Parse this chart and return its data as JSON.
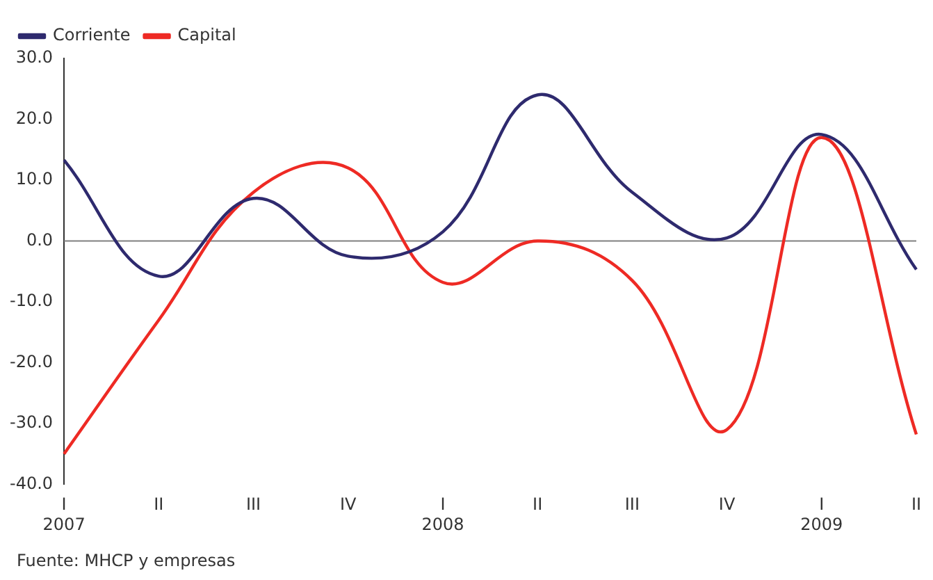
{
  "chart_data": {
    "type": "line",
    "categories": [
      "I\n2007",
      "II",
      "III",
      "IV",
      "I\n2008",
      "II",
      "III",
      "IV",
      "I\n2009",
      "II"
    ],
    "series": [
      {
        "name": "Corriente",
        "color": "#2e2a6e",
        "values": [
          13.3,
          -5.8,
          7.0,
          -2.5,
          1.5,
          24.0,
          8.0,
          0.5,
          17.5,
          -4.7
        ]
      },
      {
        "name": "Capital",
        "color": "#ee2a24",
        "values": [
          -35.0,
          -13.0,
          8.0,
          12.0,
          -6.8,
          0.0,
          -6.5,
          -31.0,
          17.0,
          -31.8
        ]
      }
    ],
    "ylim": [
      -40,
      30
    ],
    "yticks": [
      {
        "value": -40,
        "label": "-40.0"
      },
      {
        "value": -30,
        "label": "-30.0"
      },
      {
        "value": -20,
        "label": "-20.0"
      },
      {
        "value": -10,
        "label": "-10.0"
      },
      {
        "value": 0,
        "label": "0.0"
      },
      {
        "value": 10,
        "label": "10.0"
      },
      {
        "value": 20,
        "label": "20.0"
      },
      {
        "value": 30,
        "label": "30.0"
      }
    ],
    "ref_lines": [
      {
        "axis": "y",
        "value": 0,
        "color": "#808080"
      }
    ],
    "grid": false,
    "legend": "top left",
    "marker": "none",
    "line_style": "solid",
    "annotations": [
      "Fuente: MHCP y empresas"
    ]
  }
}
